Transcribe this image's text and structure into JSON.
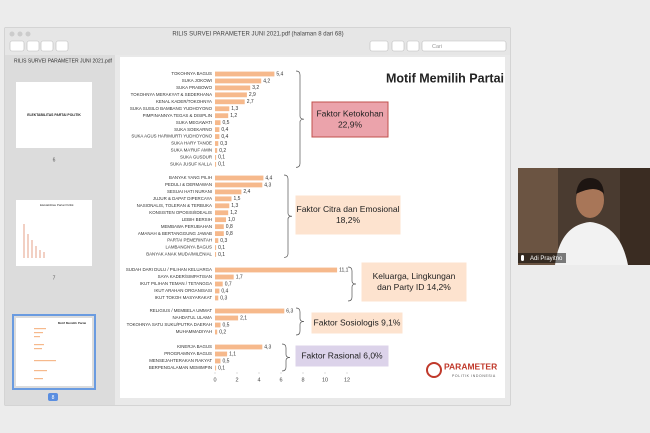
{
  "window": {
    "title": "RILIS SURVEI PARAMETER JUNI 2021.pdf (halaman 8 dari 68)",
    "sidebar_title": "RILIS SURVEI PARAMETER JUNI 2021.pdf",
    "search_placeholder": "Cari",
    "thumbnails": [
      {
        "heading": "ELEKTABILITAS PARTAI POLITIK",
        "page": "6"
      },
      {
        "heading": "Elektabilitas Partai Politik",
        "page": "7"
      },
      {
        "heading": "Motif Memilih Partai",
        "page": "8"
      }
    ]
  },
  "video": {
    "participant": "Adi Prayitno"
  },
  "logo": {
    "name": "PARAMETER",
    "tagline": "POLITIK INDONESIA"
  },
  "chart_data": {
    "type": "bar",
    "orientation": "horizontal",
    "title": "Motif Memilih Partai",
    "color": "#f6b98c",
    "xlim": [
      0,
      12
    ],
    "xticks": [
      0,
      2,
      4,
      6,
      8,
      10,
      12
    ],
    "groups": [
      {
        "annotation": [
          "Faktor Ketokohan",
          "22,9%"
        ],
        "box_color": "#eba3ab",
        "border_color": "#c0504d",
        "categories": [
          "TOKOHNYA BAGUS",
          "SUKA JOKOWI",
          "SUKA PRABOWO",
          "TOKOHNYA MERAKYAT & SEDERHANA",
          "KENAL KADER/TOKOHNYA",
          "SUKA SUSILO BAMBANG YUDHOYONO",
          "PIMPINANNYA TEGAS & DISIPLIN",
          "SUKA MEGAWATI",
          "SUKA SOEKARNO",
          "SUKA AGUS HARIMURTI YUDHOYONO",
          "SUKA HARY TANOE",
          "SUKA MA'RUF AMIN",
          "SUKA GUSDUR",
          "SUKA JUSUF KALLA"
        ],
        "values": [
          5.4,
          4.2,
          3.2,
          2.9,
          2.7,
          1.3,
          1.2,
          0.5,
          0.4,
          0.4,
          0.3,
          0.2,
          0.1,
          0.1
        ],
        "value_labels": [
          "5,4",
          "4,2",
          "3,2",
          "2,9",
          "2,7",
          "1,3",
          "1,2",
          "0,5",
          "0,4",
          "0,4",
          "0,3",
          "0,2",
          "0,1",
          "0,1"
        ]
      },
      {
        "annotation": [
          "Faktor Citra dan Emosional",
          "18,2%"
        ],
        "box_color": "#fde3cf",
        "border_color": "#fde3cf",
        "categories": [
          "BANYAK YANG PILIH",
          "PEDULI & DERMAWAN",
          "SESUAI HATI NURANI",
          "JUJUR & DAPAT DIPERCAYA",
          "NASIONALIS, TOLERAN & TERBUKA",
          "KONSISTEN OPOSISI/IDEALIS",
          "LEBIH BERSIH",
          "MEMBAWA PERUBAHAN",
          "AMANAH & BERTANGGUNG JAWAB",
          "PARTAI PEMERINTAH",
          "LAMBANGNYA BAGUS",
          "BANYAK ANAK MUDA/MILENIAL"
        ],
        "values": [
          4.4,
          4.3,
          2.4,
          1.5,
          1.3,
          1.2,
          1.0,
          0.8,
          0.8,
          0.3,
          0.1,
          0.1
        ],
        "value_labels": [
          "4,4",
          "4,3",
          "2,4",
          "1,5",
          "1,3",
          "1,2",
          "1,0",
          "0,8",
          "0,8",
          "0,3",
          "0,1",
          "0,1"
        ]
      },
      {
        "annotation": [
          "Keluarga, Lingkungan",
          "dan Party ID 14,2%"
        ],
        "box_color": "#fde3cf",
        "border_color": "#fde3cf",
        "categories": [
          "SUDAH DARI DULU / PILIHAN KELUARGA",
          "SAYA KADER/SIMPATISAN",
          "IKUT PILIHAN TEMAN / TETANGGA",
          "IKUT ARAHAN ORGANISASI",
          "IKUT TOKOH MASYARAKAT"
        ],
        "values": [
          11.1,
          1.7,
          0.7,
          0.4,
          0.3
        ],
        "value_labels": [
          "11,1",
          "1,7",
          "0,7",
          "0,4",
          "0,3"
        ]
      },
      {
        "annotation": [
          "Faktor Sosiologis 9,1%"
        ],
        "box_color": "#fde3cf",
        "border_color": "#fde3cf",
        "categories": [
          "RELIGIUS / MEMBELA UMMAT",
          "NAHDATUL ULAMA",
          "TOKOHNYA SATU SUKU/PUTRA DAERAH",
          "MUHAMMADIYAH"
        ],
        "values": [
          6.3,
          2.1,
          0.5,
          0.2
        ],
        "value_labels": [
          "6,3",
          "2,1",
          "0,5",
          "0,2"
        ]
      },
      {
        "annotation": [
          "Faktor Rasional 6,0%"
        ],
        "box_color": "#dcd3ea",
        "border_color": "#dcd3ea",
        "categories": [
          "KINERJA BAGUS",
          "PROGRAMNYA BAGUS",
          "MENSEJAHTERAKAN RAKYAT",
          "BERPENGALAMAN MEMIMPIN"
        ],
        "values": [
          4.3,
          1.1,
          0.5,
          0.1
        ],
        "value_labels": [
          "4,3",
          "1,1",
          "0,5",
          "0,1"
        ]
      }
    ]
  }
}
